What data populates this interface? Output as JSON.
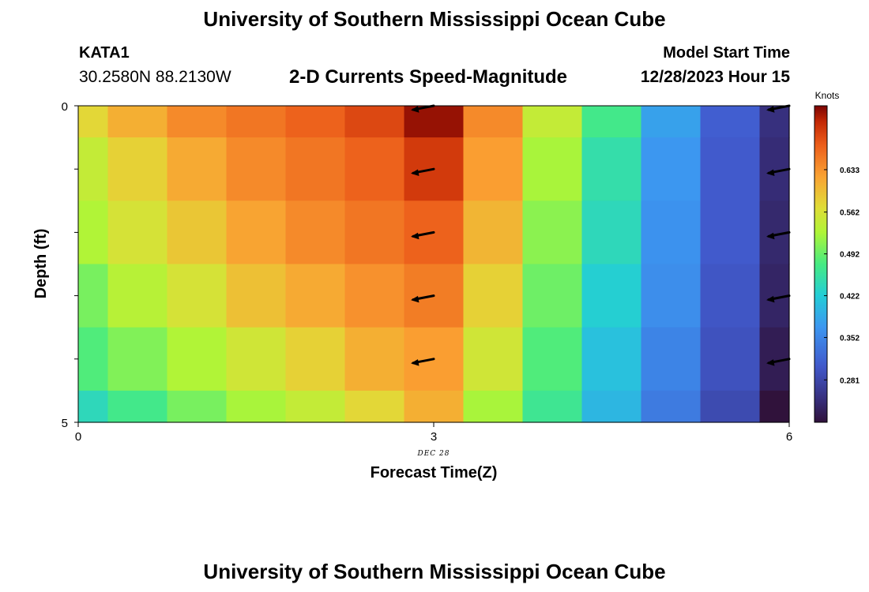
{
  "header": {
    "title": "University of Southern Mississippi Ocean Cube",
    "station": "KATA1",
    "coords": "30.2580N  88.2130W",
    "subtitle": "2-D Currents Speed-Magnitude",
    "model_start_label": "Model Start Time",
    "model_start_value": "12/28/2023 Hour 15"
  },
  "footer": {
    "title": "University of Southern Mississippi Ocean Cube"
  },
  "chart_data": {
    "type": "heatmap",
    "title": "2-D Currents Speed-Magnitude",
    "xlabel": "Forecast Time(Z)",
    "ylabel": "Depth (ft)",
    "x_ticks": [
      "0",
      "3",
      "6"
    ],
    "x_tick_values": [
      0,
      3,
      6
    ],
    "x_date_label": "DEC 28",
    "y_ticks": [
      "0",
      "5"
    ],
    "y_tick_values": [
      0,
      5
    ],
    "xlim": [
      0,
      6
    ],
    "ylim": [
      5,
      0
    ],
    "grid": false,
    "x": [
      0,
      0.5,
      1,
      1.5,
      2,
      2.5,
      3,
      3.5,
      4,
      4.5,
      5,
      5.5,
      6
    ],
    "depth": [
      0,
      1,
      2,
      3,
      4,
      5
    ],
    "speed_knots": [
      [
        0.575,
        0.61,
        0.64,
        0.655,
        0.67,
        0.69,
        0.73,
        0.64,
        0.545,
        0.47,
        0.38,
        0.31,
        0.25
      ],
      [
        0.545,
        0.58,
        0.615,
        0.64,
        0.655,
        0.67,
        0.7,
        0.625,
        0.525,
        0.45,
        0.37,
        0.305,
        0.245
      ],
      [
        0.53,
        0.56,
        0.59,
        0.62,
        0.64,
        0.655,
        0.67,
        0.605,
        0.51,
        0.44,
        0.365,
        0.305,
        0.24
      ],
      [
        0.5,
        0.535,
        0.56,
        0.595,
        0.615,
        0.635,
        0.65,
        0.58,
        0.495,
        0.425,
        0.36,
        0.3,
        0.235
      ],
      [
        0.48,
        0.505,
        0.53,
        0.555,
        0.58,
        0.61,
        0.625,
        0.555,
        0.48,
        0.41,
        0.35,
        0.295,
        0.225
      ],
      [
        0.44,
        0.47,
        0.5,
        0.525,
        0.545,
        0.575,
        0.61,
        0.525,
        0.465,
        0.4,
        0.34,
        0.285,
        0.21
      ]
    ],
    "vectors": [
      {
        "x": 3,
        "depth": 0,
        "direction": "west-southwest"
      },
      {
        "x": 3,
        "depth": 1,
        "direction": "west-southwest"
      },
      {
        "x": 3,
        "depth": 2,
        "direction": "west-southwest"
      },
      {
        "x": 3,
        "depth": 3,
        "direction": "west-southwest"
      },
      {
        "x": 3,
        "depth": 4,
        "direction": "west-southwest"
      },
      {
        "x": 6,
        "depth": 0,
        "direction": "west-southwest"
      },
      {
        "x": 6,
        "depth": 1,
        "direction": "west-southwest"
      },
      {
        "x": 6,
        "depth": 2,
        "direction": "west-southwest"
      },
      {
        "x": 6,
        "depth": 3,
        "direction": "west-southwest"
      },
      {
        "x": 6,
        "depth": 4,
        "direction": "west-southwest"
      }
    ],
    "colorbar": {
      "label": "Knots",
      "ticks": [
        "0.633",
        "0.562",
        "0.492",
        "0.422",
        "0.352",
        "0.281"
      ],
      "tick_values": [
        0.633,
        0.562,
        0.492,
        0.422,
        0.352,
        0.281
      ],
      "range": [
        0.21,
        0.74
      ],
      "colormap": "turbo"
    }
  }
}
